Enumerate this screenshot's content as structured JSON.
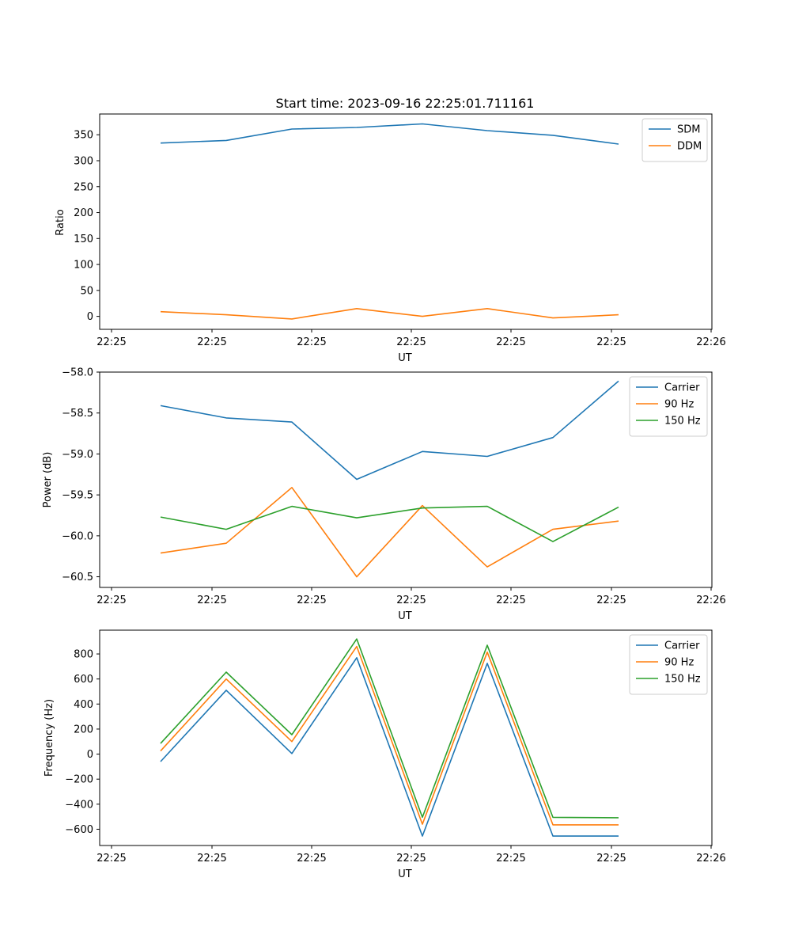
{
  "chart_data": [
    {
      "type": "line",
      "title": "Start time: 2023-09-16 22:25:01.711161",
      "xlabel": "UT",
      "ylabel": "Ratio",
      "x_tick_labels": [
        "22:25",
        "22:25",
        "22:25",
        "22:25",
        "22:25",
        "22:25",
        "22:25"
      ],
      "x_end_label": "22:26",
      "y_ticks": [
        0,
        50,
        100,
        150,
        200,
        250,
        300,
        350
      ],
      "ylim": [
        -25,
        390
      ],
      "legend": "top-right",
      "series": [
        {
          "name": "SDM",
          "color": "#1f77b4",
          "values": [
            334,
            339,
            361,
            364,
            371,
            358,
            349,
            332
          ]
        },
        {
          "name": "DDM",
          "color": "#ff7f0e",
          "values": [
            9,
            3,
            -5,
            15,
            0,
            15,
            -3,
            3
          ]
        }
      ]
    },
    {
      "type": "line",
      "title": "",
      "xlabel": "UT",
      "ylabel": "Power (dB)",
      "x_tick_labels": [
        "22:25",
        "22:25",
        "22:25",
        "22:25",
        "22:25",
        "22:25",
        "22:25"
      ],
      "x_end_label": "22:26",
      "y_ticks": [
        -60.5,
        -60.0,
        -59.5,
        -59.0,
        -58.5,
        -58.0
      ],
      "y_tick_labels": [
        "−60.5",
        "−60.0",
        "−59.5",
        "−59.0",
        "−58.5",
        "−58.0"
      ],
      "ylim": [
        -60.63,
        -58.0
      ],
      "legend": "top-right",
      "series": [
        {
          "name": "Carrier",
          "color": "#1f77b4",
          "values": [
            -58.41,
            -58.56,
            -58.61,
            -59.31,
            -58.97,
            -59.03,
            -58.8,
            -58.11
          ]
        },
        {
          "name": "90 Hz",
          "color": "#ff7f0e",
          "values": [
            -60.21,
            -60.09,
            -59.41,
            -60.5,
            -59.63,
            -60.38,
            -59.92,
            -59.82
          ]
        },
        {
          "name": "150 Hz",
          "color": "#2ca02c",
          "values": [
            -59.77,
            -59.92,
            -59.64,
            -59.78,
            -59.66,
            -59.64,
            -60.07,
            -59.65
          ]
        }
      ]
    },
    {
      "type": "line",
      "title": "",
      "xlabel": "UT",
      "ylabel": "Frequency (Hz)",
      "x_tick_labels": [
        "22:25",
        "22:25",
        "22:25",
        "22:25",
        "22:25",
        "22:25",
        "22:25"
      ],
      "x_end_label": "22:26",
      "y_ticks": [
        -600,
        -400,
        -200,
        0,
        200,
        400,
        600,
        800
      ],
      "y_tick_labels": [
        "−600",
        "−400",
        "−200",
        "0",
        "200",
        "400",
        "600",
        "800"
      ],
      "ylim": [
        -730,
        990
      ],
      "legend": "top-right",
      "series": [
        {
          "name": "Carrier",
          "color": "#1f77b4",
          "values": [
            -60,
            510,
            5,
            770,
            -655,
            725,
            -655,
            -655
          ]
        },
        {
          "name": "90 Hz",
          "color": "#ff7f0e",
          "values": [
            25,
            600,
            100,
            860,
            -560,
            815,
            -565,
            -565
          ]
        },
        {
          "name": "150 Hz",
          "color": "#2ca02c",
          "values": [
            85,
            655,
            155,
            920,
            -505,
            870,
            -505,
            -508
          ]
        }
      ]
    }
  ]
}
